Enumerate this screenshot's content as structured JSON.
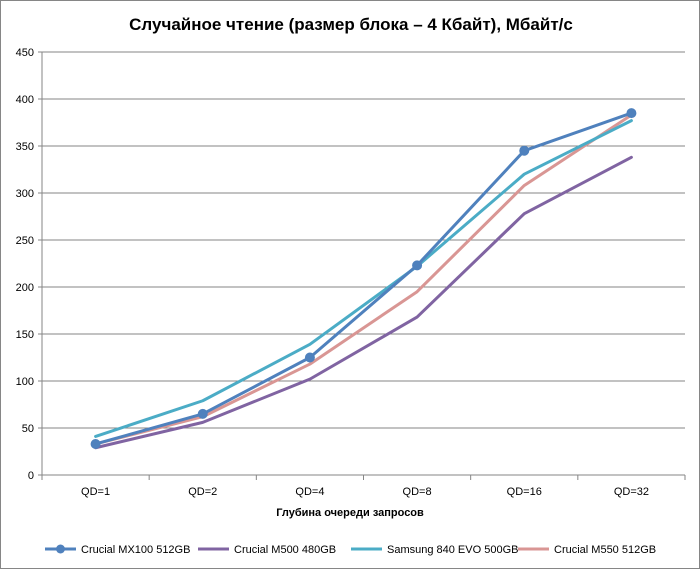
{
  "chart_data": {
    "type": "line",
    "title": "Случайное чтение (размер блока – 4 Кбайт), Мбайт/с",
    "xlabel": "Глубина очереди запросов",
    "ylabel": "",
    "categories": [
      "QD=1",
      "QD=2",
      "QD=4",
      "QD=8",
      "QD=16",
      "QD=32"
    ],
    "ylim": [
      0,
      450
    ],
    "yticks": [
      0,
      50,
      100,
      150,
      200,
      250,
      300,
      350,
      400,
      450
    ],
    "grid": "horizontal",
    "legend_position": "bottom",
    "series": [
      {
        "name": "Crucial MX100 512GB",
        "color": "#4f81bd",
        "marker": "circle",
        "values": [
          33,
          65,
          125,
          223,
          345,
          385
        ]
      },
      {
        "name": "Crucial M500 480GB",
        "color": "#8064a2",
        "marker": "none",
        "values": [
          29,
          56,
          102,
          168,
          278,
          338
        ]
      },
      {
        "name": "Samsung 840 EVO 500GB",
        "color": "#4bacc6",
        "marker": "none",
        "values": [
          41,
          79,
          139,
          222,
          320,
          377
        ]
      },
      {
        "name": "Crucial M550 512GB",
        "color": "#d99694",
        "marker": "none",
        "values": [
          33,
          62,
          118,
          195,
          308,
          383
        ]
      }
    ]
  }
}
